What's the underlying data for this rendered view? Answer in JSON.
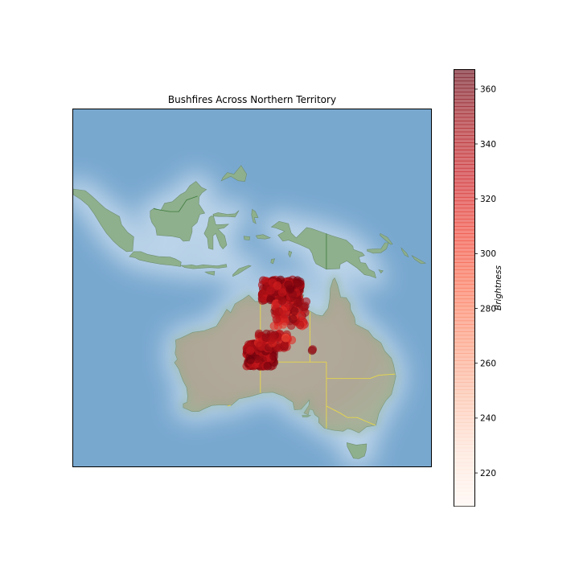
{
  "title": "Bushfires Across Northern Territory",
  "colorbar": {
    "label": "Brightness",
    "min": 208,
    "max": 367,
    "ticks": [
      220,
      240,
      260,
      280,
      300,
      320,
      340,
      360
    ],
    "colormap": "Reds",
    "alpha": 0.6
  },
  "colors": {
    "ocean_deep": "#79a8cf",
    "ocean_shallow": "#c8dcee",
    "land_desert": "#b3aa9a",
    "land_green": "#8eb08c",
    "border": "#e8d84a",
    "fire_dark": "#8b0d10",
    "fire_mid": "#d12a26"
  },
  "chart_data": {
    "type": "scatter",
    "extent": {
      "lon": [
        95,
        160
      ],
      "lat": [
        -45,
        20
      ]
    },
    "xlabel": "",
    "ylabel": "",
    "clusters": [
      {
        "lon_range": [
          129.3,
          136.3
        ],
        "lat_range": [
          -14.8,
          -11.0
        ],
        "n": 240,
        "brightness_range": [
          320,
          365
        ]
      },
      {
        "lon_range": [
          131.5,
          137.5
        ],
        "lat_range": [
          -19.5,
          -14.8
        ],
        "n": 70,
        "brightness_range": [
          305,
          360
        ]
      },
      {
        "lon_range": [
          126.5,
          131.5
        ],
        "lat_range": [
          -26.8,
          -22.5
        ],
        "n": 220,
        "brightness_range": [
          325,
          367
        ]
      },
      {
        "lon_range": [
          128.5,
          134.0
        ],
        "lat_range": [
          -23.5,
          -20.8
        ],
        "n": 60,
        "brightness_range": [
          310,
          360
        ]
      }
    ],
    "points": [
      {
        "lon": 138.4,
        "lat": -23.9,
        "brightness": 362
      },
      {
        "lon": 138.5,
        "lat": -23.7,
        "brightness": 350
      },
      {
        "lon": 133.6,
        "lat": -21.6,
        "brightness": 300
      },
      {
        "lon": 134.7,
        "lat": -22.0,
        "brightness": 315
      }
    ]
  }
}
